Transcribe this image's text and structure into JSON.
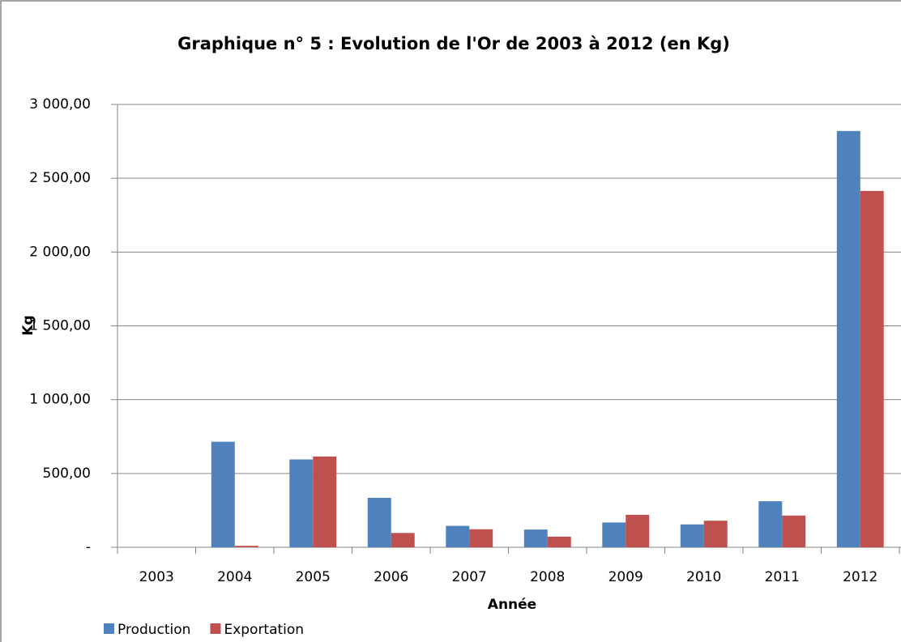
{
  "chart_data": {
    "type": "bar",
    "title": "Graphique n° 5 : Evolution de l'Or de 2003 à 2012 (en Kg)",
    "x_label": "Année",
    "y_label": "Kg",
    "categories": [
      "2003",
      "2004",
      "2005",
      "2006",
      "2007",
      "2008",
      "2009",
      "2010",
      "2011",
      "2012"
    ],
    "series": [
      {
        "name": "Production",
        "color": "#4f81bd",
        "values": [
          0,
          715,
          595,
          335,
          145,
          120,
          168,
          155,
          312,
          2820
        ]
      },
      {
        "name": "Exportation",
        "color": "#c0504d",
        "values": [
          0,
          10,
          615,
          97,
          122,
          72,
          220,
          180,
          215,
          2414
        ]
      }
    ],
    "ylim": [
      0,
      3000
    ],
    "yticks": [
      {
        "value": 0,
        "label": "-"
      },
      {
        "value": 500,
        "label": "500,00"
      },
      {
        "value": 1000,
        "label": "1 000,00"
      },
      {
        "value": 1500,
        "label": "1 500,00"
      },
      {
        "value": 2000,
        "label": "2 000,00"
      },
      {
        "value": 2500,
        "label": "2 500,00"
      },
      {
        "value": 3000,
        "label": "3 000,00"
      }
    ],
    "grid": true,
    "legend": "bottom-left"
  }
}
